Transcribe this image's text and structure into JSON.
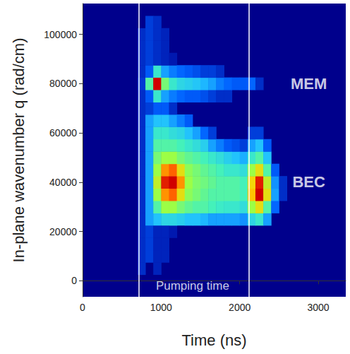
{
  "chart_data": {
    "type": "heatmap",
    "x_label": "Time (ns)",
    "y_label": "In-plane wavenumber q (rad/cm)",
    "xlim": [
      0,
      3350
    ],
    "ylim": [
      -6500,
      112500
    ],
    "xticks": [
      0,
      1000,
      2000,
      3000
    ],
    "yticks": [
      0,
      20000,
      40000,
      60000,
      80000,
      100000
    ],
    "pumping_time": [
      720,
      2120
    ],
    "annotations": [
      {
        "text": "MEM",
        "x": 2880,
        "y": 80000
      },
      {
        "text": "BEC",
        "x": 2880,
        "y": 40000
      },
      {
        "text": "Pumping time",
        "x": 1400,
        "y": -2000
      }
    ],
    "cells": [
      [
        750,
        5000,
        0.12
      ],
      [
        750,
        10000,
        0.12
      ],
      [
        750,
        15000,
        0.12
      ],
      [
        750,
        20000,
        0.12
      ],
      [
        750,
        25000,
        0.12
      ],
      [
        750,
        30000,
        0.12
      ],
      [
        750,
        35000,
        0.12
      ],
      [
        750,
        40000,
        0.12
      ],
      [
        750,
        45000,
        0.12
      ],
      [
        750,
        50000,
        0.12
      ],
      [
        750,
        55000,
        0.12
      ],
      [
        750,
        60000,
        0.12
      ],
      [
        750,
        65000,
        0.12
      ],
      [
        750,
        70000,
        0.12
      ],
      [
        750,
        75000,
        0.12
      ],
      [
        750,
        80000,
        0.14
      ],
      [
        750,
        85000,
        0.12
      ],
      [
        750,
        90000,
        0.12
      ],
      [
        750,
        95000,
        0.12
      ],
      [
        750,
        100000,
        0.12
      ],
      [
        850,
        10000,
        0.15
      ],
      [
        850,
        15000,
        0.15
      ],
      [
        850,
        20000,
        0.15
      ],
      [
        850,
        25000,
        0.3
      ],
      [
        850,
        30000,
        0.3
      ],
      [
        850,
        35000,
        0.3
      ],
      [
        850,
        40000,
        0.3
      ],
      [
        850,
        45000,
        0.3
      ],
      [
        850,
        50000,
        0.3
      ],
      [
        850,
        55000,
        0.3
      ],
      [
        850,
        60000,
        0.3
      ],
      [
        850,
        65000,
        0.3
      ],
      [
        850,
        70000,
        0.15
      ],
      [
        850,
        75000,
        0.2
      ],
      [
        850,
        80000,
        0.5
      ],
      [
        850,
        85000,
        0.2
      ],
      [
        850,
        90000,
        0.15
      ],
      [
        850,
        95000,
        0.15
      ],
      [
        850,
        100000,
        0.15
      ],
      [
        850,
        105000,
        0.15
      ],
      [
        950,
        5000,
        0.1
      ],
      [
        950,
        10000,
        0.1
      ],
      [
        950,
        15000,
        0.1
      ],
      [
        950,
        20000,
        0.1
      ],
      [
        950,
        25000,
        0.35
      ],
      [
        950,
        30000,
        0.5
      ],
      [
        950,
        35000,
        0.6
      ],
      [
        950,
        40000,
        0.65
      ],
      [
        950,
        45000,
        0.6
      ],
      [
        950,
        50000,
        0.55
      ],
      [
        950,
        55000,
        0.5
      ],
      [
        950,
        60000,
        0.45
      ],
      [
        950,
        65000,
        0.35
      ],
      [
        950,
        70000,
        0.2
      ],
      [
        950,
        75000,
        0.45
      ],
      [
        950,
        80000,
        1.0
      ],
      [
        950,
        85000,
        0.45
      ],
      [
        950,
        90000,
        0.12
      ],
      [
        950,
        95000,
        0.12
      ],
      [
        950,
        100000,
        0.12
      ],
      [
        950,
        105000,
        0.12
      ],
      [
        1050,
        10000,
        0.1
      ],
      [
        1050,
        15000,
        0.1
      ],
      [
        1050,
        20000,
        0.1
      ],
      [
        1050,
        25000,
        0.4
      ],
      [
        1050,
        30000,
        0.6
      ],
      [
        1050,
        35000,
        0.8
      ],
      [
        1050,
        40000,
        0.95
      ],
      [
        1050,
        45000,
        0.8
      ],
      [
        1050,
        50000,
        0.6
      ],
      [
        1050,
        55000,
        0.5
      ],
      [
        1050,
        60000,
        0.45
      ],
      [
        1050,
        65000,
        0.35
      ],
      [
        1050,
        70000,
        0.2
      ],
      [
        1050,
        75000,
        0.3
      ],
      [
        1050,
        80000,
        0.55
      ],
      [
        1050,
        85000,
        0.3
      ],
      [
        1050,
        90000,
        0.1
      ],
      [
        1050,
        95000,
        0.1
      ],
      [
        1050,
        100000,
        0.1
      ],
      [
        1150,
        20000,
        0.08
      ],
      [
        1150,
        25000,
        0.4
      ],
      [
        1150,
        30000,
        0.6
      ],
      [
        1150,
        35000,
        0.85
      ],
      [
        1150,
        40000,
        1.0
      ],
      [
        1150,
        45000,
        0.85
      ],
      [
        1150,
        50000,
        0.6
      ],
      [
        1150,
        55000,
        0.5
      ],
      [
        1150,
        60000,
        0.42
      ],
      [
        1150,
        65000,
        0.3
      ],
      [
        1150,
        70000,
        0.12
      ],
      [
        1150,
        75000,
        0.25
      ],
      [
        1150,
        80000,
        0.45
      ],
      [
        1150,
        85000,
        0.25
      ],
      [
        1150,
        90000,
        0.08
      ],
      [
        1250,
        25000,
        0.38
      ],
      [
        1250,
        30000,
        0.55
      ],
      [
        1250,
        35000,
        0.7
      ],
      [
        1250,
        40000,
        0.8
      ],
      [
        1250,
        45000,
        0.7
      ],
      [
        1250,
        50000,
        0.55
      ],
      [
        1250,
        55000,
        0.48
      ],
      [
        1250,
        60000,
        0.4
      ],
      [
        1250,
        65000,
        0.25
      ],
      [
        1250,
        75000,
        0.22
      ],
      [
        1250,
        80000,
        0.4
      ],
      [
        1250,
        85000,
        0.22
      ],
      [
        1350,
        25000,
        0.35
      ],
      [
        1350,
        30000,
        0.52
      ],
      [
        1350,
        35000,
        0.58
      ],
      [
        1350,
        40000,
        0.6
      ],
      [
        1350,
        45000,
        0.58
      ],
      [
        1350,
        50000,
        0.52
      ],
      [
        1350,
        55000,
        0.45
      ],
      [
        1350,
        60000,
        0.35
      ],
      [
        1350,
        65000,
        0.2
      ],
      [
        1350,
        75000,
        0.2
      ],
      [
        1350,
        80000,
        0.38
      ],
      [
        1350,
        85000,
        0.2
      ],
      [
        1450,
        25000,
        0.35
      ],
      [
        1450,
        30000,
        0.5
      ],
      [
        1450,
        35000,
        0.55
      ],
      [
        1450,
        40000,
        0.56
      ],
      [
        1450,
        45000,
        0.55
      ],
      [
        1450,
        50000,
        0.5
      ],
      [
        1450,
        55000,
        0.42
      ],
      [
        1450,
        60000,
        0.3
      ],
      [
        1450,
        75000,
        0.2
      ],
      [
        1450,
        80000,
        0.36
      ],
      [
        1450,
        85000,
        0.18
      ],
      [
        1550,
        25000,
        0.33
      ],
      [
        1550,
        30000,
        0.5
      ],
      [
        1550,
        35000,
        0.52
      ],
      [
        1550,
        40000,
        0.54
      ],
      [
        1550,
        45000,
        0.52
      ],
      [
        1550,
        50000,
        0.48
      ],
      [
        1550,
        55000,
        0.38
      ],
      [
        1550,
        60000,
        0.22
      ],
      [
        1550,
        75000,
        0.18
      ],
      [
        1550,
        80000,
        0.33
      ],
      [
        1550,
        85000,
        0.15
      ],
      [
        1650,
        25000,
        0.3
      ],
      [
        1650,
        30000,
        0.48
      ],
      [
        1650,
        35000,
        0.5
      ],
      [
        1650,
        40000,
        0.52
      ],
      [
        1650,
        45000,
        0.5
      ],
      [
        1650,
        50000,
        0.45
      ],
      [
        1650,
        55000,
        0.3
      ],
      [
        1650,
        60000,
        0.15
      ],
      [
        1650,
        75000,
        0.15
      ],
      [
        1650,
        80000,
        0.3
      ],
      [
        1650,
        85000,
        0.15
      ],
      [
        1750,
        25000,
        0.3
      ],
      [
        1750,
        30000,
        0.46
      ],
      [
        1750,
        35000,
        0.5
      ],
      [
        1750,
        40000,
        0.5
      ],
      [
        1750,
        45000,
        0.48
      ],
      [
        1750,
        50000,
        0.42
      ],
      [
        1750,
        55000,
        0.25
      ],
      [
        1750,
        75000,
        0.12
      ],
      [
        1750,
        80000,
        0.25
      ],
      [
        1750,
        85000,
        0.12
      ],
      [
        1850,
        25000,
        0.3
      ],
      [
        1850,
        30000,
        0.45
      ],
      [
        1850,
        35000,
        0.5
      ],
      [
        1850,
        40000,
        0.5
      ],
      [
        1850,
        45000,
        0.45
      ],
      [
        1850,
        50000,
        0.38
      ],
      [
        1850,
        55000,
        0.2
      ],
      [
        1850,
        75000,
        0.12
      ],
      [
        1850,
        80000,
        0.22
      ],
      [
        1950,
        25000,
        0.3
      ],
      [
        1950,
        30000,
        0.45
      ],
      [
        1950,
        35000,
        0.5
      ],
      [
        1950,
        40000,
        0.5
      ],
      [
        1950,
        45000,
        0.45
      ],
      [
        1950,
        50000,
        0.35
      ],
      [
        1950,
        55000,
        0.18
      ],
      [
        1950,
        80000,
        0.2
      ],
      [
        2050,
        25000,
        0.28
      ],
      [
        2050,
        30000,
        0.42
      ],
      [
        2050,
        35000,
        0.48
      ],
      [
        2050,
        40000,
        0.48
      ],
      [
        2050,
        45000,
        0.42
      ],
      [
        2050,
        50000,
        0.32
      ],
      [
        2050,
        55000,
        0.15
      ],
      [
        2050,
        80000,
        0.2
      ],
      [
        2150,
        25000,
        0.4
      ],
      [
        2150,
        30000,
        0.6
      ],
      [
        2150,
        35000,
        0.75
      ],
      [
        2150,
        40000,
        0.72
      ],
      [
        2150,
        45000,
        0.6
      ],
      [
        2150,
        50000,
        0.45
      ],
      [
        2150,
        55000,
        0.3
      ],
      [
        2150,
        60000,
        0.15
      ],
      [
        2150,
        80000,
        0.22
      ],
      [
        2250,
        25000,
        0.45
      ],
      [
        2250,
        30000,
        0.7
      ],
      [
        2250,
        35000,
        1.0
      ],
      [
        2250,
        40000,
        0.95
      ],
      [
        2250,
        45000,
        0.7
      ],
      [
        2250,
        50000,
        0.5
      ],
      [
        2250,
        55000,
        0.35
      ],
      [
        2250,
        60000,
        0.15
      ],
      [
        2250,
        80000,
        0.12
      ],
      [
        2350,
        25000,
        0.3
      ],
      [
        2350,
        30000,
        0.5
      ],
      [
        2350,
        35000,
        0.7
      ],
      [
        2350,
        40000,
        0.65
      ],
      [
        2350,
        45000,
        0.5
      ],
      [
        2350,
        50000,
        0.35
      ],
      [
        2350,
        55000,
        0.2
      ],
      [
        2450,
        30000,
        0.22
      ],
      [
        2450,
        35000,
        0.3
      ],
      [
        2450,
        40000,
        0.28
      ],
      [
        2450,
        45000,
        0.2
      ],
      [
        2550,
        35000,
        0.12
      ],
      [
        2550,
        40000,
        0.12
      ]
    ]
  }
}
